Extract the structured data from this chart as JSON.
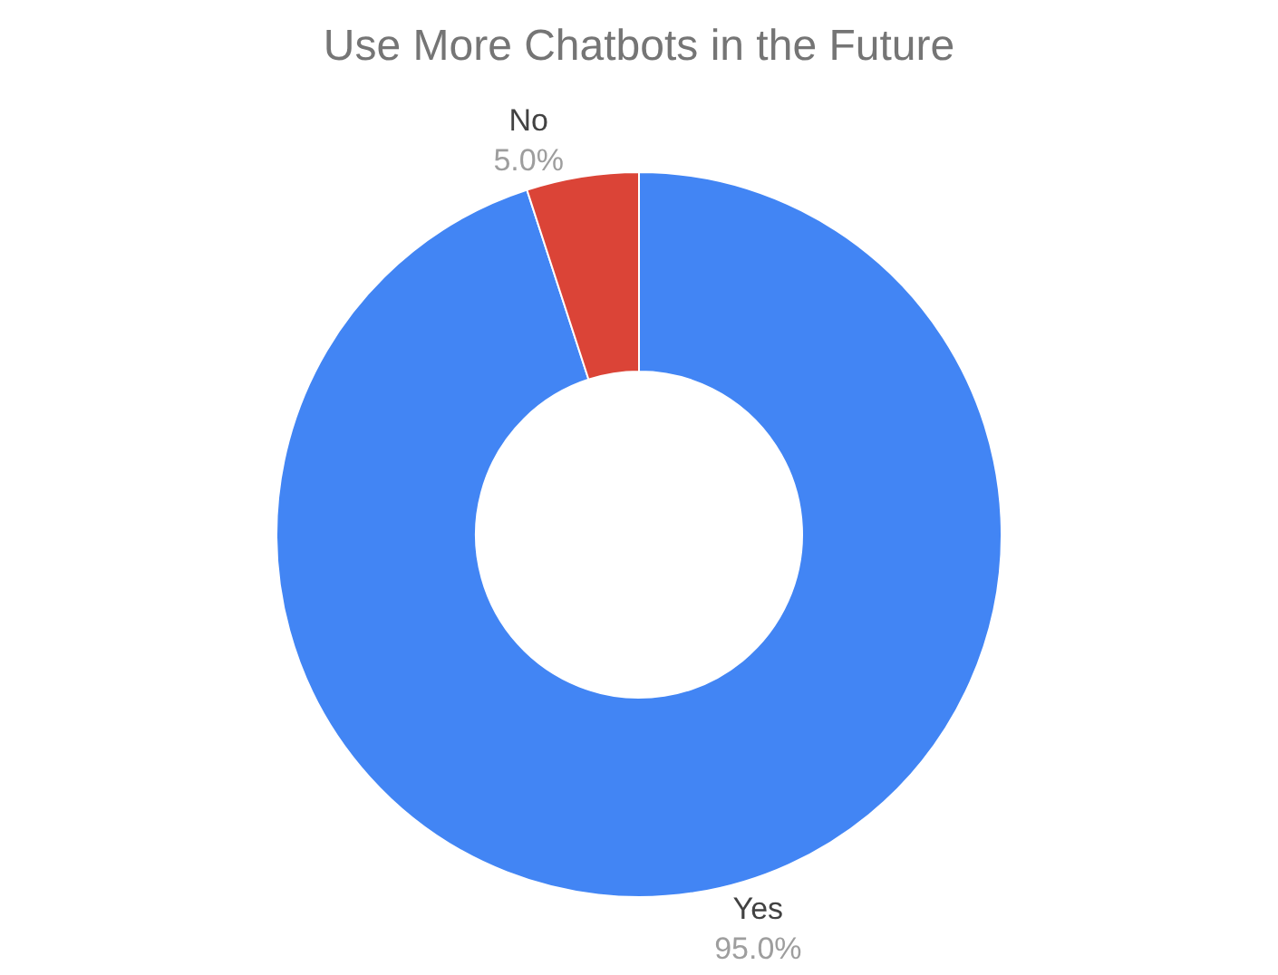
{
  "chart_data": {
    "type": "donut",
    "title": "Use More Chatbots in the Future",
    "categories": [
      "Yes",
      "No"
    ],
    "values": [
      95.0,
      5.0
    ],
    "colors": [
      "#4285f4",
      "#db4437"
    ],
    "value_labels": [
      "95.0%",
      "5.0%"
    ],
    "legend": false
  }
}
